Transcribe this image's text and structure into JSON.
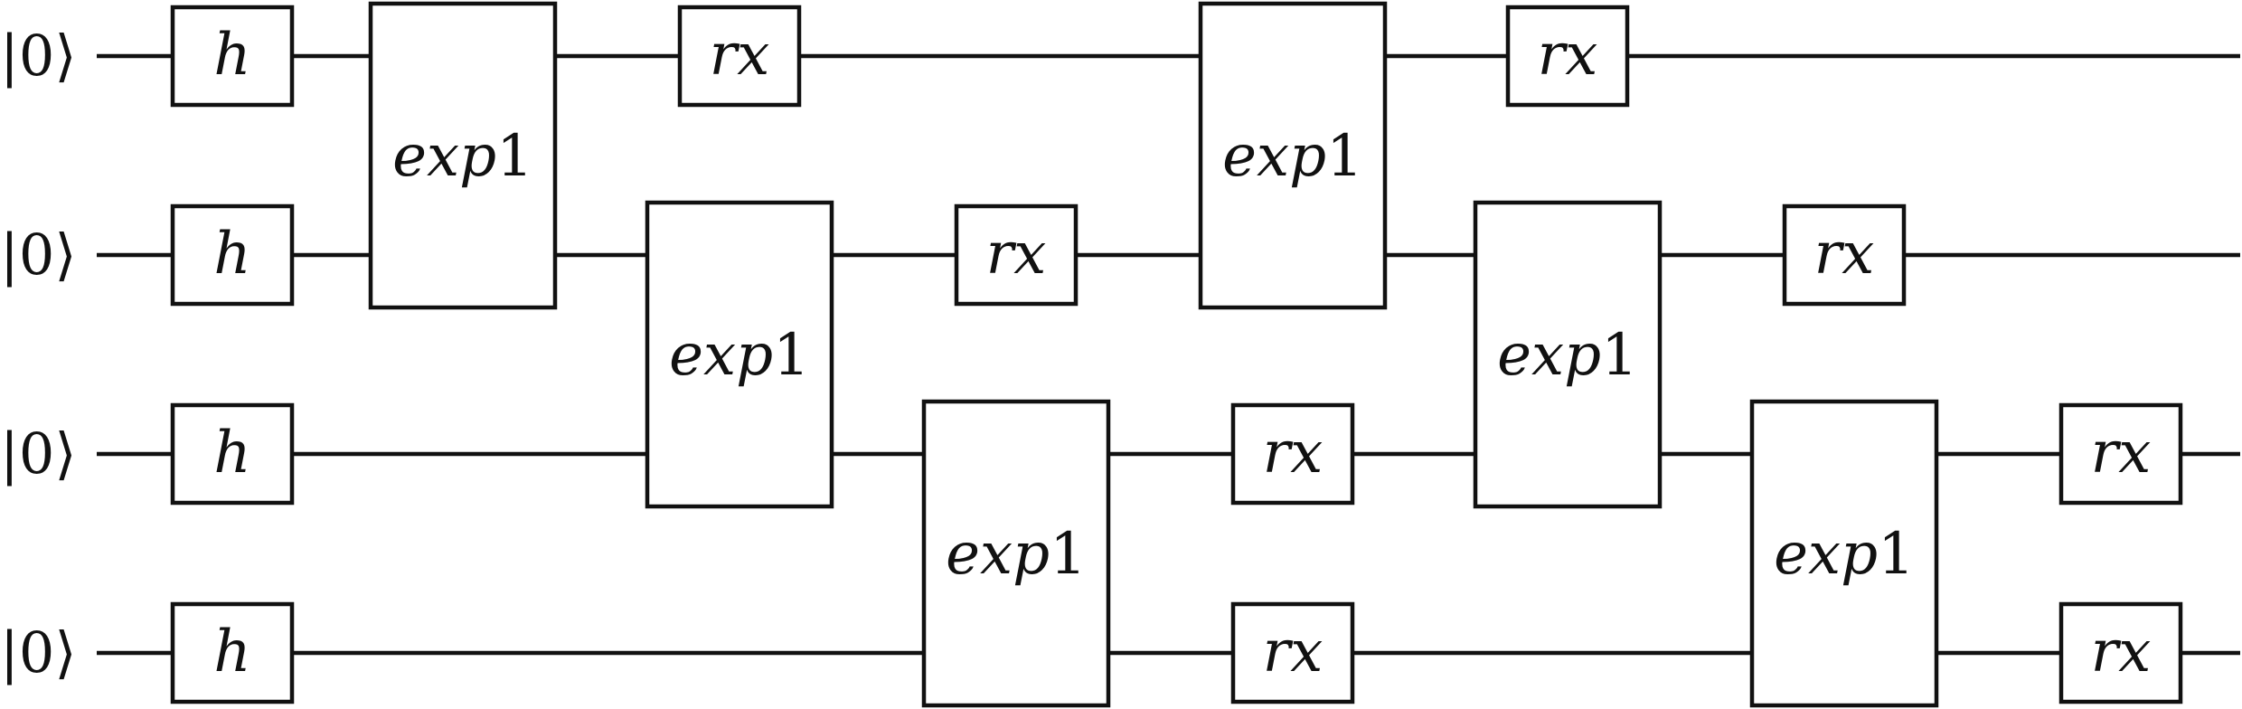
{
  "circuit": {
    "qubits": [
      {
        "label": "|0⟩"
      },
      {
        "label": "|0⟩"
      },
      {
        "label": "|0⟩"
      },
      {
        "label": "|0⟩"
      }
    ],
    "gates": [
      {
        "name": "h",
        "qubits": [
          0
        ],
        "step": 0
      },
      {
        "name": "h",
        "qubits": [
          1
        ],
        "step": 0
      },
      {
        "name": "h",
        "qubits": [
          2
        ],
        "step": 0
      },
      {
        "name": "h",
        "qubits": [
          3
        ],
        "step": 0
      },
      {
        "name": "exp1",
        "qubits": [
          0,
          1
        ],
        "step": 1
      },
      {
        "name": "rx",
        "qubits": [
          0
        ],
        "step": 2
      },
      {
        "name": "exp1",
        "qubits": [
          1,
          2
        ],
        "step": 2
      },
      {
        "name": "rx",
        "qubits": [
          1
        ],
        "step": 3
      },
      {
        "name": "exp1",
        "qubits": [
          2,
          3
        ],
        "step": 3
      },
      {
        "name": "rx",
        "qubits": [
          2
        ],
        "step": 4
      },
      {
        "name": "rx",
        "qubits": [
          3
        ],
        "step": 4
      },
      {
        "name": "exp1",
        "qubits": [
          0,
          1
        ],
        "step": 4
      },
      {
        "name": "rx",
        "qubits": [
          0
        ],
        "step": 5
      },
      {
        "name": "exp1",
        "qubits": [
          1,
          2
        ],
        "step": 5
      },
      {
        "name": "rx",
        "qubits": [
          1
        ],
        "step": 6
      },
      {
        "name": "exp1",
        "qubits": [
          2,
          3
        ],
        "step": 6
      },
      {
        "name": "rx",
        "qubits": [
          2
        ],
        "step": 7
      },
      {
        "name": "rx",
        "qubits": [
          3
        ],
        "step": 7
      }
    ]
  }
}
